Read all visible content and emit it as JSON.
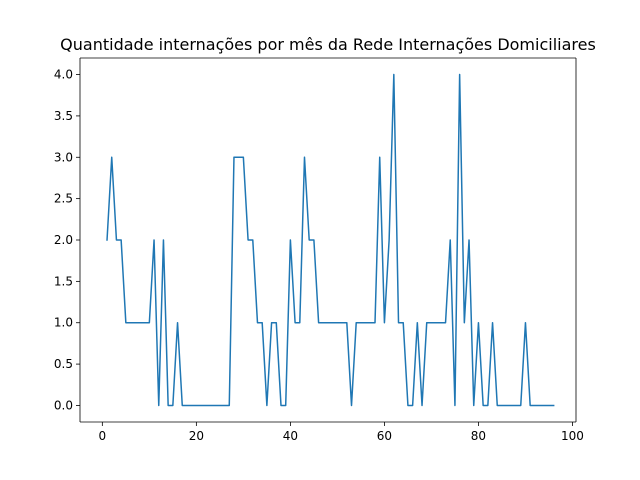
{
  "chart_data": {
    "type": "line",
    "title": "Quantidade internações por mês da Rede Internações Domiciliares",
    "xlabel": "",
    "ylabel": "",
    "xlim": [
      -4.75,
      100.75
    ],
    "ylim": [
      -0.2,
      4.2
    ],
    "x_ticks": [
      0,
      20,
      40,
      60,
      80,
      100
    ],
    "y_ticks": [
      0.0,
      0.5,
      1.0,
      1.5,
      2.0,
      2.5,
      3.0,
      3.5,
      4.0
    ],
    "x_tick_labels": [
      "0",
      "20",
      "40",
      "60",
      "80",
      "100"
    ],
    "y_tick_labels": [
      "0.0",
      "0.5",
      "1.0",
      "1.5",
      "2.0",
      "2.5",
      "3.0",
      "3.5",
      "4.0"
    ],
    "grid": false,
    "legend": "none",
    "color": "#1f77b4",
    "series": [
      {
        "x": [
          1,
          2,
          3,
          4,
          5,
          6,
          7,
          8,
          9,
          10,
          11,
          12,
          13,
          14,
          15,
          16,
          17,
          18,
          19,
          20,
          21,
          22,
          23,
          24,
          25,
          26,
          27,
          28,
          29,
          30,
          31,
          32,
          33,
          34,
          35,
          36,
          37,
          38,
          39,
          40,
          41,
          42,
          43,
          44,
          45,
          46,
          47,
          48,
          49,
          50,
          51,
          52,
          53,
          54,
          55,
          56,
          57,
          58,
          59,
          60,
          61,
          62,
          63,
          64,
          65,
          66,
          67,
          68,
          69,
          70,
          71,
          72,
          73,
          74,
          75,
          76,
          77,
          78,
          79,
          80,
          81,
          82,
          83,
          84,
          85,
          86,
          87,
          88,
          89,
          90,
          91,
          92,
          93,
          94,
          95,
          96
        ],
        "values": [
          2,
          3,
          2,
          2,
          1,
          1,
          1,
          1,
          1,
          1,
          2,
          0,
          2,
          0,
          0,
          1,
          0,
          0,
          0,
          0,
          0,
          0,
          0,
          0,
          0,
          0,
          0,
          3,
          3,
          3,
          2,
          2,
          1,
          1,
          0,
          1,
          1,
          0,
          0,
          2,
          1,
          1,
          3,
          2,
          2,
          1,
          1,
          1,
          1,
          1,
          1,
          1,
          0,
          1,
          1,
          1,
          1,
          1,
          3,
          1,
          2,
          4,
          1,
          1,
          0,
          0,
          1,
          0,
          1,
          1,
          1,
          1,
          1,
          2,
          0,
          4,
          1,
          2,
          0,
          1,
          0,
          0,
          1,
          0,
          0,
          0,
          0,
          0,
          0,
          1,
          0,
          0,
          0,
          0,
          0,
          0
        ]
      }
    ]
  }
}
